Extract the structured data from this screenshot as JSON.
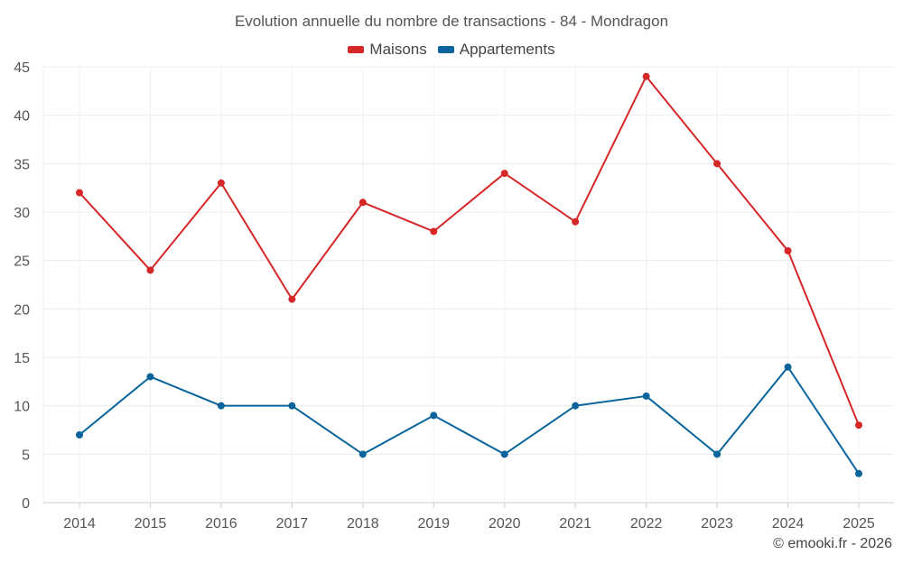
{
  "chart_data": {
    "type": "line",
    "title": "Evolution annuelle du nombre de transactions - 84 - Mondragon",
    "categories": [
      "2014",
      "2015",
      "2016",
      "2017",
      "2018",
      "2019",
      "2020",
      "2021",
      "2022",
      "2023",
      "2024",
      "2025"
    ],
    "series": [
      {
        "name": "Maisons",
        "color": "#d62728",
        "values": [
          32,
          24,
          33,
          21,
          31,
          28,
          34,
          29,
          44,
          35,
          26,
          8
        ]
      },
      {
        "name": "Appartements",
        "color": "#08649b",
        "values": [
          7,
          13,
          10,
          10,
          5,
          9,
          5,
          10,
          11,
          5,
          14,
          3
        ]
      }
    ],
    "ylim": [
      0,
      45
    ],
    "yticks": [
      0,
      5,
      10,
      15,
      20,
      25,
      30,
      35,
      40,
      45
    ],
    "grid": true,
    "legend": "top-center",
    "xlabel": "",
    "ylabel": ""
  },
  "credit": "© emooki.fr - 2026"
}
